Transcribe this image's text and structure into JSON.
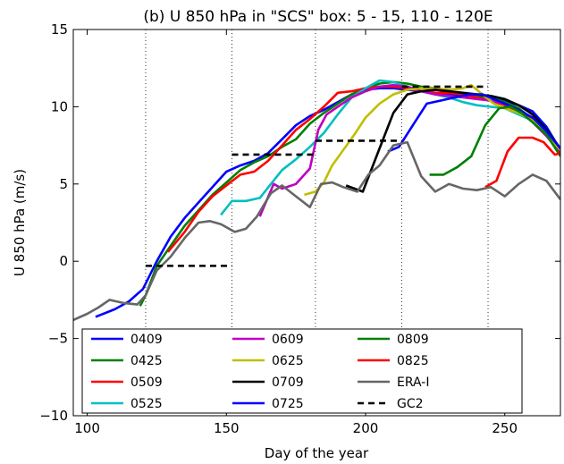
{
  "chart_data": {
    "type": "line",
    "title": "(b) U 850 hPa in \"SCS\" box: 5 - 15, 110 - 120E",
    "xlabel": "Day of the year",
    "ylabel": "U 850 hPa (m/s)",
    "xlim": [
      95,
      270
    ],
    "ylim": [
      -10,
      15
    ],
    "xticks": [
      100,
      150,
      200,
      250
    ],
    "yticks": [
      -10,
      -5,
      0,
      5,
      10,
      15
    ],
    "xtick_labels": [
      "100",
      "150",
      "200",
      "250"
    ],
    "ytick_labels": [
      "−10",
      "−5",
      "0",
      "5",
      "10",
      "15"
    ],
    "vlines": [
      121,
      152,
      182,
      213,
      244
    ],
    "legend_position": "lower-center, 3 columns",
    "series": [
      {
        "name": "0409",
        "color": "#0000ff",
        "dashed": false,
        "x": [
          103,
          110,
          115,
          120,
          125,
          130,
          135,
          140,
          145,
          150,
          155,
          160,
          165,
          170,
          175,
          180,
          185,
          190,
          195,
          200,
          205,
          210,
          215,
          220,
          225,
          230,
          235,
          240,
          245,
          250,
          255,
          260,
          265,
          270
        ],
        "y": [
          -3.6,
          -3.1,
          -2.6,
          -1.8,
          0.0,
          1.6,
          2.8,
          3.8,
          4.8,
          5.8,
          6.2,
          6.5,
          7.0,
          7.9,
          8.8,
          9.4,
          9.8,
          10.3,
          10.8,
          11.1,
          11.2,
          11.2,
          11.1,
          11.0,
          10.9,
          10.8,
          10.7,
          10.7,
          10.6,
          10.4,
          10.1,
          9.7,
          8.7,
          7.2
        ]
      },
      {
        "name": "0425",
        "color": "#008000",
        "dashed": false,
        "x": [
          119,
          121,
          125,
          130,
          135,
          140,
          145,
          150,
          155,
          160,
          165,
          170,
          175,
          180,
          185,
          190,
          195,
          200,
          205,
          210,
          215,
          220,
          225,
          230,
          235,
          240,
          245,
          250,
          255,
          260,
          265,
          270
        ],
        "y": [
          -2.9,
          -2.2,
          -0.3,
          1.0,
          2.3,
          3.3,
          4.3,
          5.1,
          5.9,
          6.4,
          6.8,
          7.4,
          7.9,
          8.9,
          9.6,
          10.2,
          10.8,
          11.2,
          11.5,
          11.6,
          11.5,
          11.3,
          11.2,
          11.0,
          10.8,
          10.7,
          10.6,
          10.3,
          9.9,
          9.2,
          8.3,
          7.0
        ]
      },
      {
        "name": "0509",
        "color": "#ff0000",
        "dashed": false,
        "x": [
          129,
          135,
          140,
          145,
          150,
          155,
          160,
          165,
          170,
          175,
          180,
          185,
          190,
          195,
          200,
          205,
          210,
          215,
          220,
          225,
          230,
          235,
          240,
          245,
          250,
          255,
          260,
          265,
          270
        ],
        "y": [
          0.6,
          1.9,
          3.2,
          4.2,
          4.9,
          5.6,
          5.8,
          6.5,
          7.5,
          8.5,
          9.2,
          10.0,
          10.9,
          11.0,
          11.2,
          11.3,
          11.3,
          11.2,
          11.0,
          10.9,
          10.9,
          10.8,
          10.6,
          10.4,
          10.1,
          9.7,
          9.2,
          8.3,
          7.3
        ]
      },
      {
        "name": "0525",
        "color": "#00bfbf",
        "dashed": false,
        "x": [
          148,
          152,
          157,
          162,
          166,
          170,
          175,
          180,
          185,
          190,
          195,
          200,
          205,
          210,
          215,
          220,
          225,
          230,
          235,
          240,
          245,
          250,
          255,
          260,
          265,
          270
        ],
        "y": [
          3.0,
          3.9,
          3.9,
          4.1,
          5.0,
          5.9,
          6.6,
          7.4,
          8.3,
          9.5,
          10.6,
          11.2,
          11.7,
          11.6,
          11.3,
          11.0,
          10.8,
          10.6,
          10.3,
          10.1,
          10.0,
          9.9,
          9.5,
          9.1,
          8.3,
          7.2
        ]
      },
      {
        "name": "0609",
        "color": "#bf00bf",
        "dashed": false,
        "x": [
          162,
          167,
          170,
          175,
          180,
          183,
          186,
          190,
          195,
          200,
          205,
          210,
          215,
          220,
          225,
          230,
          235,
          240,
          245,
          250,
          255,
          260,
          265,
          270
        ],
        "y": [
          2.9,
          5.0,
          4.7,
          5.0,
          6.0,
          8.5,
          9.5,
          10.0,
          10.6,
          11.0,
          11.3,
          11.4,
          11.3,
          11.0,
          10.8,
          10.7,
          10.6,
          10.5,
          10.4,
          10.2,
          9.8,
          9.0,
          8.1,
          7.0
        ]
      },
      {
        "name": "0625",
        "color": "#bfbf00",
        "dashed": false,
        "x": [
          178,
          182,
          185,
          188,
          192,
          196,
          200,
          205,
          210,
          215,
          220,
          225,
          230,
          235,
          238,
          242,
          246,
          250,
          255,
          260,
          265,
          270
        ],
        "y": [
          4.3,
          4.5,
          5.1,
          6.2,
          7.2,
          8.2,
          9.3,
          10.2,
          10.8,
          11.1,
          11.2,
          11.2,
          11.1,
          11.2,
          11.4,
          10.8,
          10.2,
          9.9,
          9.6,
          9.1,
          8.2,
          7.2
        ]
      },
      {
        "name": "0709",
        "color": "#000000",
        "dashed": false,
        "x": [
          193,
          199,
          205,
          210,
          215,
          220,
          225,
          230,
          235,
          240,
          245,
          250,
          255,
          260,
          265,
          270
        ],
        "y": [
          4.9,
          4.5,
          7.3,
          9.6,
          10.8,
          11.0,
          11.1,
          11.0,
          10.9,
          10.8,
          10.7,
          10.5,
          10.1,
          9.5,
          8.5,
          7.3
        ]
      },
      {
        "name": "0725",
        "color": "#0000ff",
        "dashed": false,
        "x": [
          208,
          212,
          217,
          222,
          227,
          232,
          237,
          242,
          246,
          250,
          255,
          260,
          265,
          270
        ],
        "y": [
          7.1,
          7.4,
          8.8,
          10.2,
          10.4,
          10.6,
          10.8,
          10.8,
          10.5,
          10.2,
          9.8,
          9.3,
          8.4,
          7.3
        ]
      },
      {
        "name": "0809",
        "color": "#008000",
        "dashed": false,
        "x": [
          223,
          228,
          233,
          238,
          243,
          248,
          252,
          256,
          260,
          265,
          270
        ],
        "y": [
          5.6,
          5.6,
          6.1,
          6.8,
          8.8,
          9.9,
          10.0,
          9.6,
          9.0,
          8.2,
          6.8
        ]
      },
      {
        "name": "0825",
        "color": "#ff0000",
        "dashed": false,
        "x": [
          243,
          247,
          251,
          255,
          260,
          264,
          268,
          270
        ],
        "y": [
          4.8,
          5.2,
          7.1,
          8.0,
          8.0,
          7.7,
          6.9,
          7.0
        ]
      },
      {
        "name": "ERA-I",
        "color": "#666666",
        "dashed": false,
        "x": [
          95,
          100,
          104,
          108,
          113,
          118,
          121,
          125,
          130,
          135,
          140,
          144,
          148,
          153,
          157,
          161,
          166,
          170,
          175,
          180,
          184,
          188,
          192,
          197,
          201,
          205,
          210,
          215,
          220,
          225,
          230,
          235,
          240,
          245,
          250,
          255,
          260,
          265,
          270
        ],
        "y": [
          -3.8,
          -3.4,
          -3.0,
          -2.5,
          -2.7,
          -2.8,
          -2.2,
          -0.6,
          0.3,
          1.5,
          2.5,
          2.6,
          2.4,
          1.9,
          2.1,
          2.9,
          4.4,
          4.9,
          4.2,
          3.5,
          5.0,
          5.1,
          4.8,
          4.5,
          5.6,
          6.2,
          7.5,
          7.7,
          5.5,
          4.5,
          5.0,
          4.7,
          4.6,
          4.8,
          4.2,
          5.0,
          5.6,
          5.2,
          4.0
        ]
      },
      {
        "name": "GC2",
        "color": "#000000",
        "dashed": true,
        "segments": [
          {
            "x": [
              121,
              152
            ],
            "y": [
              -0.3,
              -0.3
            ]
          },
          {
            "x": [
              152,
              182
            ],
            "y": [
              6.9,
              6.9
            ]
          },
          {
            "x": [
              182,
              213
            ],
            "y": [
              7.8,
              7.8
            ]
          },
          {
            "x": [
              213,
              244
            ],
            "y": [
              11.3,
              11.3
            ]
          }
        ]
      }
    ]
  }
}
